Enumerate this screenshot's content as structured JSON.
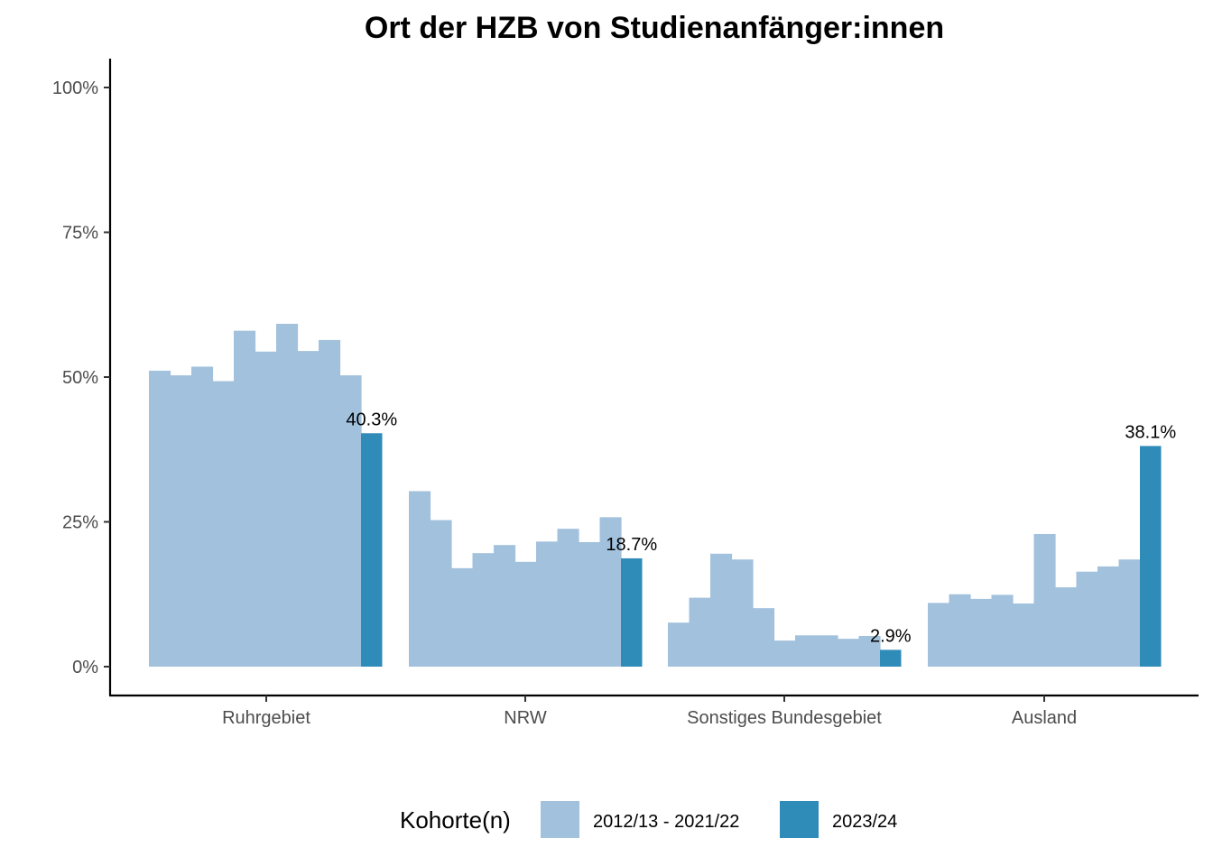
{
  "chart_data": {
    "type": "bar",
    "title": "Ort der HZB von Studienanfänger:innen",
    "xlabel": "",
    "ylabel": "",
    "ylim": [
      -0.05,
      1.05
    ],
    "y_ticks": [
      0,
      0.25,
      0.5,
      0.75,
      1.0
    ],
    "y_tick_labels": [
      "0%",
      "25%",
      "50%",
      "75%",
      "100%"
    ],
    "categories": [
      "Ruhrgebiet",
      "NRW",
      "Sonstiges Bundesgebiet",
      "Ausland"
    ],
    "series": [
      {
        "name": "2012/13 - 2021/22",
        "color": "#a2c1dc",
        "values": [
          [
            0.511,
            0.503,
            0.518,
            0.493,
            0.58,
            0.544,
            0.592,
            0.545,
            0.564,
            0.503
          ],
          [
            0.303,
            0.253,
            0.17,
            0.196,
            0.21,
            0.181,
            0.216,
            0.238,
            0.215,
            0.258
          ],
          [
            0.076,
            0.119,
            0.195,
            0.185,
            0.101,
            0.045,
            0.054,
            0.054,
            0.048,
            0.053
          ],
          [
            0.11,
            0.125,
            0.117,
            0.124,
            0.109,
            0.229,
            0.137,
            0.164,
            0.173,
            0.185
          ]
        ]
      },
      {
        "name": "2023/24",
        "color": "#2f8bb8",
        "values": [
          0.403,
          0.187,
          0.029,
          0.381
        ],
        "labels": [
          "40.3%",
          "18.7%",
          "2.9%",
          "38.1%"
        ]
      }
    ],
    "legend": {
      "title": "Kohorte(n)",
      "position": "bottom",
      "entries": [
        "2012/13 - 2021/22",
        "2023/24"
      ]
    },
    "grid": false
  }
}
